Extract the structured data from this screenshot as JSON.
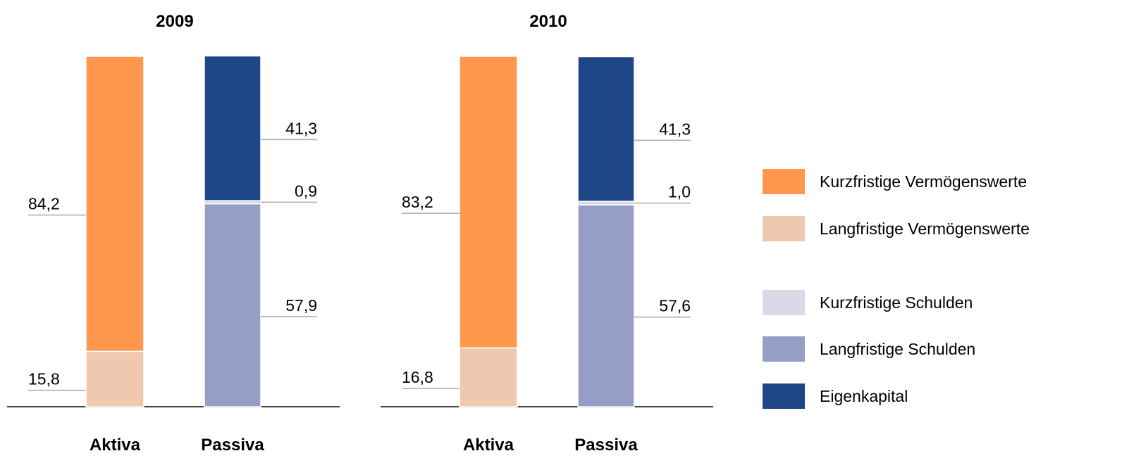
{
  "chart_data": [
    {
      "type": "bar",
      "stacked": true,
      "title": "2009",
      "categories": [
        "Aktiva",
        "Passiva"
      ],
      "ylim": [
        0,
        100
      ],
      "series": [
        {
          "name": "Langfristige Vermögenswerte",
          "color": "#efc9af",
          "values": [
            15.8,
            null
          ],
          "value_labels": [
            "15,8",
            null
          ]
        },
        {
          "name": "Kurzfristige Vermögenswerte",
          "color": "#ff974d",
          "values": [
            84.2,
            null
          ],
          "value_labels": [
            "84,2",
            null
          ]
        },
        {
          "name": "Langfristige Schulden",
          "color": "#979ec5",
          "values": [
            null,
            57.9
          ],
          "value_labels": [
            null,
            "57,9"
          ]
        },
        {
          "name": "Kurzfristige Schulden",
          "color": "#d9d9e8",
          "values": [
            null,
            0.9
          ],
          "value_labels": [
            null,
            "0,9"
          ]
        },
        {
          "name": "Eigenkapital",
          "color": "#1f4788",
          "values": [
            null,
            41.3
          ],
          "value_labels": [
            null,
            "41,3"
          ]
        }
      ]
    },
    {
      "type": "bar",
      "stacked": true,
      "title": "2010",
      "categories": [
        "Aktiva",
        "Passiva"
      ],
      "ylim": [
        0,
        100
      ],
      "series": [
        {
          "name": "Langfristige Vermögenswerte",
          "color": "#efc9af",
          "values": [
            16.8,
            null
          ],
          "value_labels": [
            "16,8",
            null
          ]
        },
        {
          "name": "Kurzfristige Vermögenswerte",
          "color": "#ff974d",
          "values": [
            83.2,
            null
          ],
          "value_labels": [
            "83,2",
            null
          ]
        },
        {
          "name": "Langfristige Schulden",
          "color": "#979ec5",
          "values": [
            null,
            57.6
          ],
          "value_labels": [
            null,
            "57,6"
          ]
        },
        {
          "name": "Kurzfristige Schulden",
          "color": "#d9d9e8",
          "values": [
            null,
            1.0
          ],
          "value_labels": [
            null,
            "1,0"
          ]
        },
        {
          "name": "Eigenkapital",
          "color": "#1f4788",
          "values": [
            null,
            41.3
          ],
          "value_labels": [
            null,
            "41,3"
          ]
        }
      ]
    }
  ]
}
